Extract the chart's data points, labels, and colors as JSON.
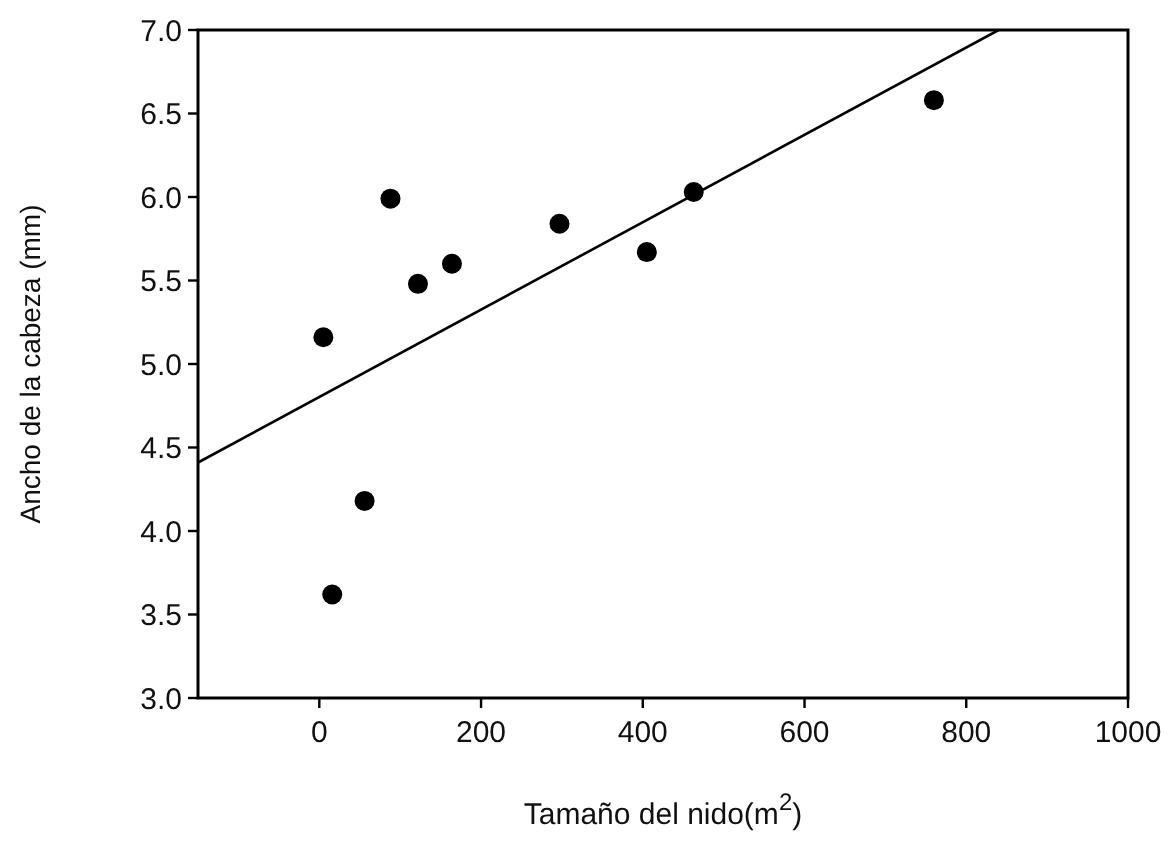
{
  "chart_data": {
    "type": "scatter",
    "xlabel": "Tamaño del nido(m$^{2}$)",
    "ylabel": "Ancho de la cabeza (mm)",
    "xlim": [
      -150,
      1000
    ],
    "xticks": [
      0,
      200,
      400,
      600,
      800,
      1000
    ],
    "ylim": [
      3.0,
      7.0
    ],
    "yticks": [
      {
        "value": 3,
        "label": "3.0"
      },
      {
        "value": 3.5,
        "label": "3.5"
      },
      {
        "value": 4,
        "label": "4.0"
      },
      {
        "value": 4.5,
        "label": "4.5"
      },
      {
        "value": 5,
        "label": "5.0"
      },
      {
        "value": 5.5,
        "label": "5.5"
      },
      {
        "value": 6,
        "label": "6.0"
      },
      {
        "value": 6.5,
        "label": "6.5"
      },
      {
        "value": 7,
        "label": "7.0"
      }
    ],
    "grid": false,
    "marker": "circle",
    "series": [
      {
        "color": "#000000",
        "x": [
          5,
          16,
          56,
          88,
          122,
          164,
          297,
          405,
          463,
          760
        ],
        "values": [
          5.16,
          3.62,
          4.18,
          5.99,
          5.48,
          5.6,
          5.84,
          5.67,
          6.03,
          6.58
        ]
      },
      {
        "type": "line",
        "color": "#000000",
        "line_style": "solid",
        "marker": "none",
        "x": [
          -150,
          840
        ],
        "values": [
          4.41,
          7.0
        ]
      }
    ]
  }
}
